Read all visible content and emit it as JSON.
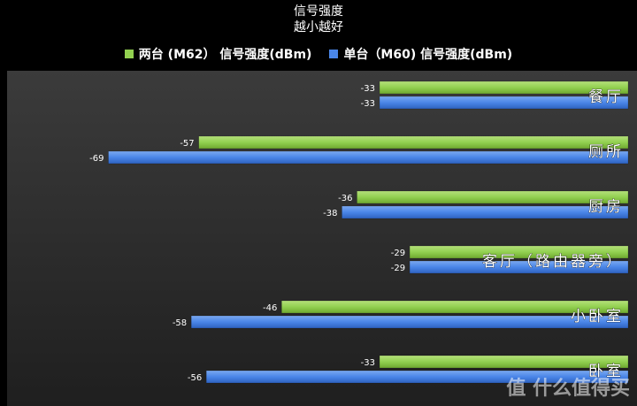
{
  "chart_data": {
    "type": "bar",
    "orientation": "horizontal",
    "title": "信号强度",
    "subtitle": "越小越好",
    "categories": [
      "餐厅",
      "厕所",
      "厨房",
      "客厅（路由器旁）",
      "小卧室",
      "卧室"
    ],
    "series": [
      {
        "name": "两台 (M62） 信号强度(dBm)",
        "color": "#92d050",
        "values": [
          -33,
          -57,
          -36,
          -29,
          -46,
          -33
        ]
      },
      {
        "name": "单台（M60) 信号强度(dBm)",
        "color": "#4a86e8",
        "values": [
          -33,
          -69,
          -38,
          -29,
          -58,
          -56
        ]
      }
    ],
    "xlim": [
      -70,
      0
    ],
    "grid": false,
    "legend_position": "top"
  },
  "watermark": "值 什么值得买"
}
